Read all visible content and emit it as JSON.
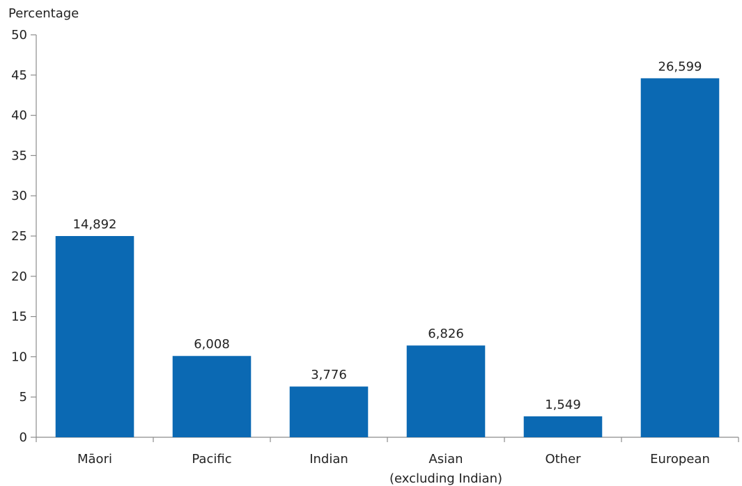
{
  "chart_data": {
    "type": "bar",
    "ylabel": "Percentage",
    "xlabel": "",
    "ylim": [
      0,
      50
    ],
    "y_ticks": [
      0,
      5,
      10,
      15,
      20,
      25,
      30,
      35,
      40,
      45,
      50
    ],
    "grid": false,
    "categories": [
      [
        "Māori"
      ],
      [
        "Pacific"
      ],
      [
        "Indian"
      ],
      [
        "Asian",
        "(excluding Indian)"
      ],
      [
        "Other"
      ],
      [
        "European"
      ]
    ],
    "values": [
      25.0,
      10.1,
      6.3,
      11.4,
      2.6,
      44.6
    ],
    "data_labels": [
      "14,892",
      "6,008",
      "3,776",
      "6,826",
      "1,549",
      "26,599"
    ],
    "bar_color": "#0b69b3",
    "axis_color": "#8c8c8c",
    "text_color": "#222222"
  }
}
